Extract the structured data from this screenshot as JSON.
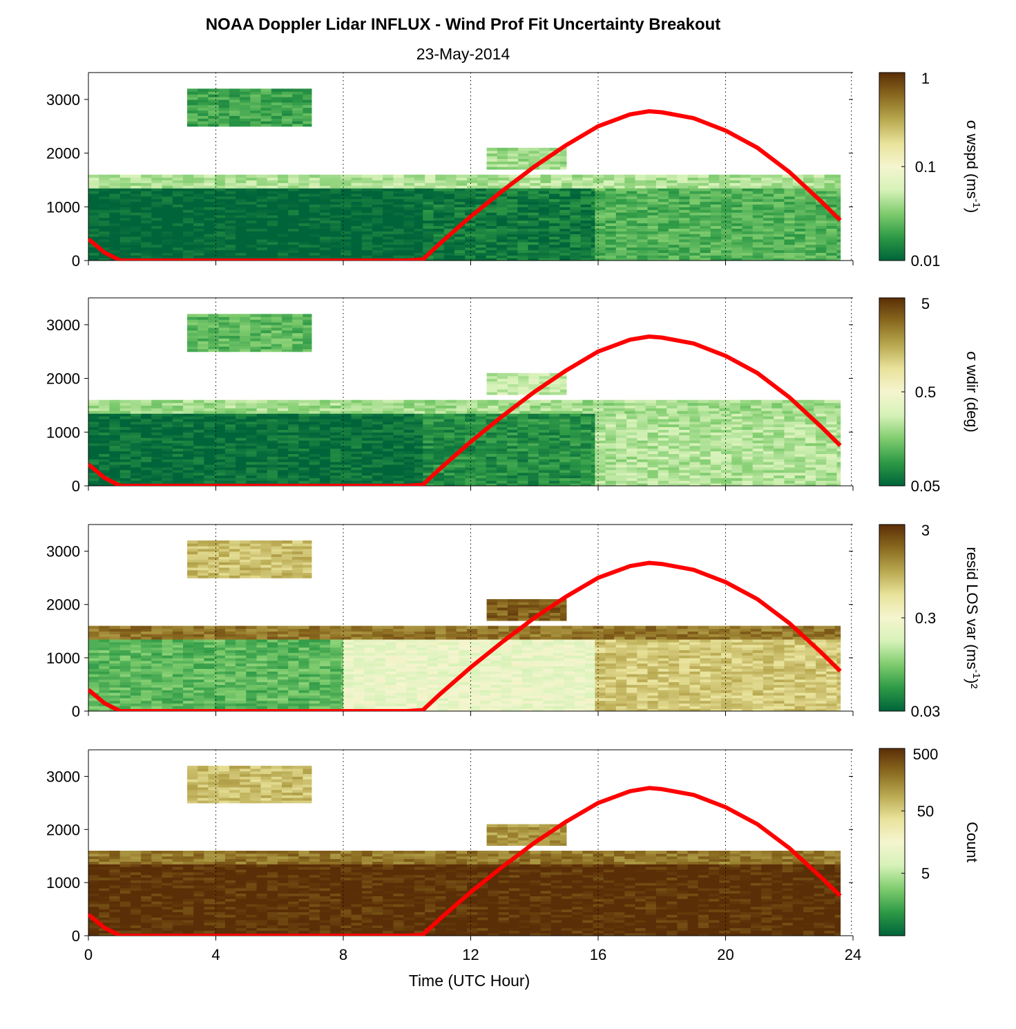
{
  "title": "NOAA Doppler Lidar INFLUX - Wind Prof Fit Uncertainty Breakout",
  "subtitle": "23-May-2014",
  "colors": {
    "curve": "#ff0000",
    "colormap": [
      "#00643a",
      "#2e9a46",
      "#7fcc6e",
      "#d6f2b8",
      "#f5f5cf",
      "#e8e29a",
      "#b8a850",
      "#8a6a20",
      "#5a2e06"
    ]
  },
  "chart_data": [
    {
      "type": "heatmap",
      "panel": 1,
      "xlabel": "",
      "ylabel": "",
      "xlim": [
        0,
        24
      ],
      "ylim": [
        0,
        3500
      ],
      "yticks": [
        "0",
        "1000",
        "2000",
        "3000"
      ],
      "xgrid": [
        4,
        8,
        12,
        16,
        20
      ],
      "colorbar": {
        "label": "σ wspd (ms",
        "label_sup": "-1",
        "label_end": ")",
        "scale": "log",
        "range": [
          0.01,
          1
        ],
        "ticks": [
          "1",
          "0.1",
          "0.01"
        ]
      },
      "regions": [
        {
          "x0": 0.0,
          "x1": 10.5,
          "y0": 0,
          "y1": 1350,
          "level": 0.0
        },
        {
          "x0": 10.5,
          "x1": 15.9,
          "y0": 0,
          "y1": 1500,
          "level": 0.05
        },
        {
          "x0": 15.9,
          "x1": 23.6,
          "y0": 0,
          "y1": 1500,
          "level": 0.18
        },
        {
          "x0": 0.0,
          "x1": 23.6,
          "y0": 1350,
          "y1": 1600,
          "level": 0.32
        },
        {
          "x0": 3.1,
          "x1": 7.0,
          "y0": 2500,
          "y1": 3200,
          "level": 0.15
        },
        {
          "x0": 12.5,
          "x1": 15.0,
          "y0": 1700,
          "y1": 2100,
          "level": 0.3
        }
      ]
    },
    {
      "type": "heatmap",
      "panel": 2,
      "xlabel": "",
      "ylabel": "",
      "xlim": [
        0,
        24
      ],
      "ylim": [
        0,
        3500
      ],
      "yticks": [
        "0",
        "1000",
        "2000",
        "3000"
      ],
      "xgrid": [
        4,
        8,
        12,
        16,
        20
      ],
      "colorbar": {
        "label": "σ wdir (deg)",
        "label_sup": "",
        "label_end": "",
        "scale": "log",
        "range": [
          0.05,
          5
        ],
        "ticks": [
          "5",
          "0.5",
          "0.05"
        ]
      },
      "regions": [
        {
          "x0": 0.0,
          "x1": 10.5,
          "y0": 0,
          "y1": 1350,
          "level": 0.02
        },
        {
          "x0": 10.5,
          "x1": 15.9,
          "y0": 0,
          "y1": 1500,
          "level": 0.1
        },
        {
          "x0": 15.9,
          "x1": 23.6,
          "y0": 0,
          "y1": 1500,
          "level": 0.32
        },
        {
          "x0": 0.0,
          "x1": 23.6,
          "y0": 1350,
          "y1": 1600,
          "level": 0.3
        },
        {
          "x0": 3.1,
          "x1": 7.0,
          "y0": 2500,
          "y1": 3200,
          "level": 0.2
        },
        {
          "x0": 12.5,
          "x1": 15.0,
          "y0": 1700,
          "y1": 2100,
          "level": 0.35
        }
      ]
    },
    {
      "type": "heatmap",
      "panel": 3,
      "xlabel": "",
      "ylabel": "",
      "xlim": [
        0,
        24
      ],
      "ylim": [
        0,
        3500
      ],
      "yticks": [
        "0",
        "1000",
        "2000",
        "3000"
      ],
      "xgrid": [
        4,
        8,
        12,
        16,
        20
      ],
      "colorbar": {
        "label": "resid LOS var (ms",
        "label_sup": "-1",
        "label_end": ")²",
        "scale": "log",
        "range": [
          0.03,
          3
        ],
        "ticks": [
          "3",
          "0.3",
          "0.03"
        ]
      },
      "regions": [
        {
          "x0": 0.0,
          "x1": 8.0,
          "y0": 0,
          "y1": 1350,
          "level": 0.2
        },
        {
          "x0": 8.0,
          "x1": 15.9,
          "y0": 0,
          "y1": 1500,
          "level": 0.45
        },
        {
          "x0": 15.9,
          "x1": 23.6,
          "y0": 0,
          "y1": 1500,
          "level": 0.68
        },
        {
          "x0": 0.0,
          "x1": 23.6,
          "y0": 1350,
          "y1": 1600,
          "level": 0.85
        },
        {
          "x0": 3.1,
          "x1": 7.0,
          "y0": 2500,
          "y1": 3200,
          "level": 0.7
        },
        {
          "x0": 12.5,
          "x1": 15.0,
          "y0": 1700,
          "y1": 2100,
          "level": 0.9
        }
      ]
    },
    {
      "type": "heatmap",
      "panel": 4,
      "xlabel": "Time (UTC Hour)",
      "ylabel": "",
      "xlim": [
        0,
        24
      ],
      "ylim": [
        0,
        3500
      ],
      "yticks": [
        "0",
        "1000",
        "2000",
        "3000"
      ],
      "xticks": [
        "0",
        "4",
        "8",
        "12",
        "16",
        "20",
        "24"
      ],
      "xgrid": [
        4,
        8,
        12,
        16,
        20
      ],
      "colorbar": {
        "label": "Count",
        "label_sup": "",
        "label_end": "",
        "scale": "log",
        "range": [
          0.5,
          500
        ],
        "ticks": [
          "500",
          "50",
          "5"
        ]
      },
      "regions": [
        {
          "x0": 0.0,
          "x1": 23.6,
          "y0": 0,
          "y1": 1350,
          "level": 1.0
        },
        {
          "x0": 0.0,
          "x1": 23.6,
          "y0": 1350,
          "y1": 1600,
          "level": 0.85
        },
        {
          "x0": 3.1,
          "x1": 7.0,
          "y0": 2500,
          "y1": 3200,
          "level": 0.7
        },
        {
          "x0": 12.5,
          "x1": 15.0,
          "y0": 1700,
          "y1": 2100,
          "level": 0.78
        }
      ]
    }
  ],
  "curve": {
    "x": [
      0,
      0.5,
      1.0,
      2,
      4,
      6,
      8,
      10,
      10.5,
      11,
      12,
      13,
      14,
      15,
      16,
      17,
      17.6,
      18,
      19,
      20,
      21,
      22,
      23,
      23.6
    ],
    "y": [
      400,
      150,
      0,
      0,
      0,
      0,
      0,
      0,
      20,
      300,
      820,
      1300,
      1750,
      2150,
      2500,
      2720,
      2780,
      2760,
      2650,
      2420,
      2100,
      1650,
      1100,
      750
    ]
  }
}
